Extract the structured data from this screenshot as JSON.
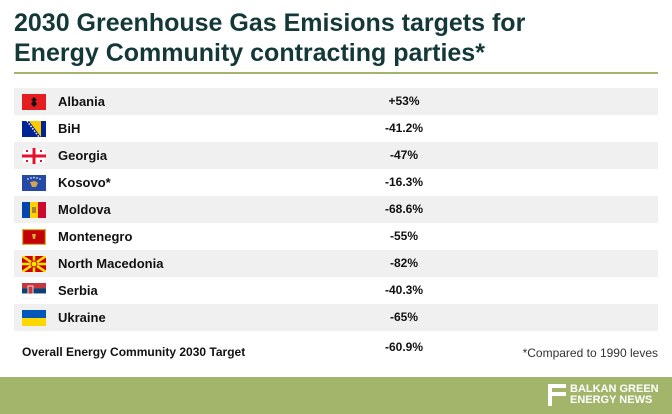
{
  "header": {
    "title_lines": [
      "2030 Greenhouse Gas Emisions targets for",
      "Energy Community contracting parties*"
    ]
  },
  "table": {
    "rows": [
      [
        "Albania",
        "+53%"
      ],
      [
        "BiH",
        "-41.2%"
      ],
      [
        "Georgia",
        "-47%"
      ],
      [
        "Kosovo*",
        "-16.3%"
      ],
      [
        "Moldova",
        "-68.6%"
      ],
      [
        "Montenegro",
        "-55%"
      ],
      [
        "North Macedonia",
        "-82%"
      ],
      [
        "Serbia",
        "-40.3%"
      ],
      [
        "Ukraine",
        "-65%"
      ]
    ]
  },
  "summary": {
    "label": "Overall Energy Community 2030 Target",
    "value": "-60.9%",
    "note": "*Compared to 1990 leves"
  },
  "footer": {
    "brand_lines": [
      "BALKAN GREEN",
      "ENERGY NEWS"
    ]
  }
}
